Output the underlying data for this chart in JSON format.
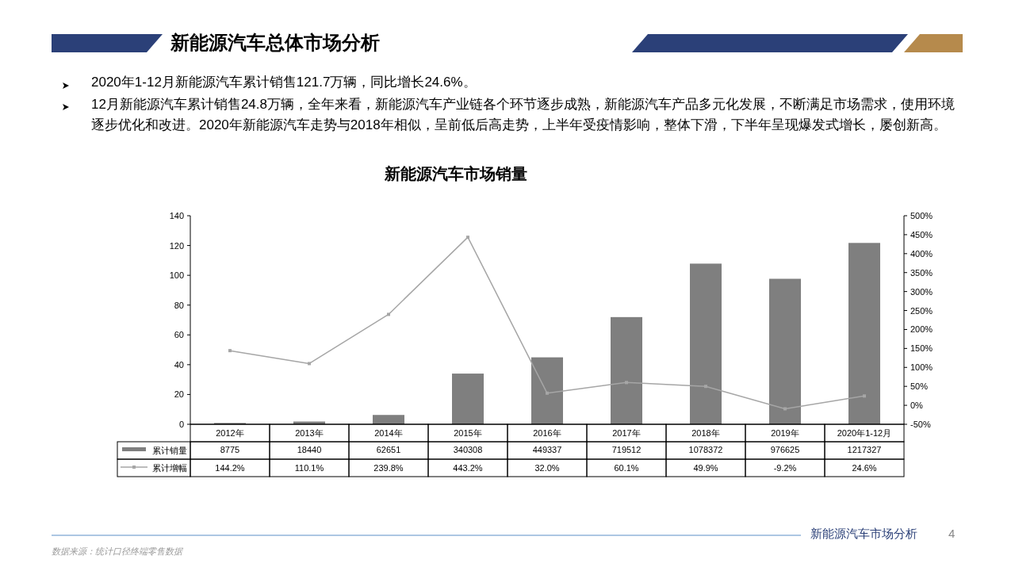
{
  "chart_data": {
    "type": "bar",
    "title": "新能源汽车市场销量",
    "categories": [
      "2012年",
      "2013年",
      "2014年",
      "2015年",
      "2016年",
      "2017年",
      "2018年",
      "2019年",
      "2020年1-12月"
    ],
    "series": [
      {
        "name": "累计销量",
        "color": "#7f7f7f",
        "values": [
          0.8775,
          1.844,
          6.2651,
          34.0308,
          44.9337,
          71.9512,
          107.8372,
          97.6625,
          121.7327
        ]
      },
      {
        "name": "累计增幅",
        "type": "line",
        "axis": "y2",
        "color": "#a6a6a6",
        "values": [
          144.2,
          110.1,
          239.8,
          443.2,
          32.0,
          60.1,
          49.9,
          -9.2,
          24.6
        ],
        "value_labels": [
          "144.2%",
          "110.1%",
          "239.8%",
          "443.2%",
          "32.0%",
          "60.1%",
          "49.9%",
          "-9.2%",
          "24.6%"
        ]
      }
    ],
    "ylim": [
      0,
      140
    ],
    "yticks": [
      0,
      20,
      40,
      60,
      80,
      100,
      120,
      140
    ],
    "y2lim": [
      -50,
      500
    ],
    "y2ticks": [
      {
        "value": -50,
        "label": "-50%"
      },
      {
        "value": 0,
        "label": "0%"
      },
      {
        "value": 50,
        "label": "50%"
      },
      {
        "value": 100,
        "label": "100%"
      },
      {
        "value": 150,
        "label": "150%"
      },
      {
        "value": 200,
        "label": "200%"
      },
      {
        "value": 250,
        "label": "250%"
      },
      {
        "value": 300,
        "label": "300%"
      },
      {
        "value": 350,
        "label": "350%"
      },
      {
        "value": 400,
        "label": "400%"
      },
      {
        "value": 450,
        "label": "450%"
      },
      {
        "value": 500,
        "label": "500%"
      }
    ],
    "marker": "square",
    "line_style": "solid",
    "grid": false,
    "legend": "bottom",
    "annotations": [
      "新能源汽车总体市场分析",
      "2020年1-12月新能源汽车累计销售121.7万辆，同比增长24.6%。",
      "12月新能源汽车累计销售24.8万辆，全年来看，新能源汽车产业链各个环节逐步成熟，新能源汽车产品多元化发展，不断满足市场需求，使用环境逐步优化和改进。2020年新能源汽车走势与2018年相似，呈前低后高走势，上半年受疫情影响，整体下滑，下半年呈现爆发式增长，屡创新高。",
      "新能源汽车市场分析",
      "4",
      "数据来源：统计口径终端零售数据",
      "8775",
      "18440",
      "62651",
      "340308",
      "449337",
      "719512",
      "1078372",
      "976625",
      "1217327"
    ]
  }
}
